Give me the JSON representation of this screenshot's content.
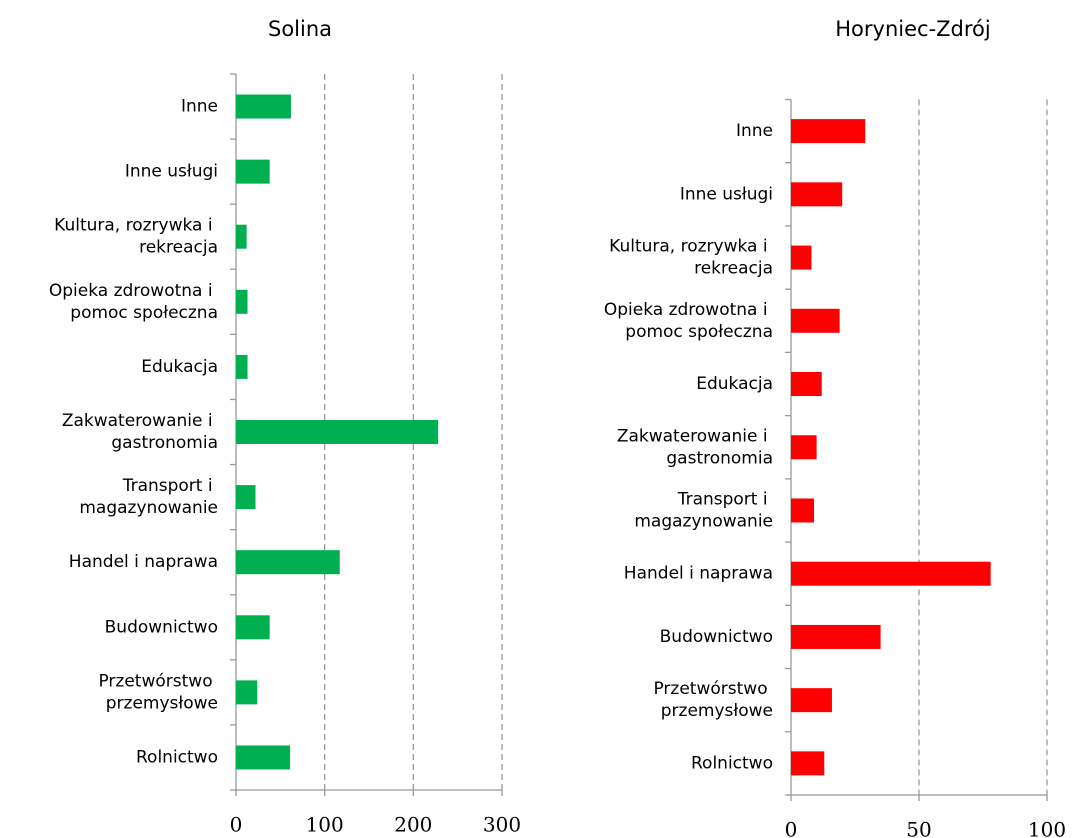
{
  "chart_data": [
    {
      "type": "barh",
      "title": "Solina",
      "color": "#00b050",
      "categories": [
        "Inne",
        "Inne usługi",
        "Kultura, rozrywka i rekreacja",
        "Opieka zdrowotna i pomoc społeczna",
        "Edukacja",
        "Zakwaterowanie i gastronomia",
        "Transport i magazynowanie",
        "Handel i naprawa",
        "Budownictwo",
        "Przetwórstwo przemysłowe",
        "Rolnictwo"
      ],
      "values": [
        62,
        38,
        12,
        13,
        13,
        228,
        22,
        117,
        38,
        24,
        61
      ],
      "xlim": [
        0,
        300
      ],
      "xticks": [
        0,
        100,
        200,
        300
      ],
      "grid": true
    },
    {
      "type": "barh",
      "title": "Horyniec-Zdrój",
      "color": "#ff0000",
      "categories": [
        "Inne",
        "Inne usługi",
        "Kultura, rozrywka i rekreacja",
        "Opieka zdrowotna i pomoc społeczna",
        "Edukacja",
        "Zakwaterowanie i gastronomia",
        "Transport i magazynowanie",
        "Handel i naprawa",
        "Budownictwo",
        "Przetwórstwo przemysłowe",
        "Rolnictwo"
      ],
      "values": [
        29,
        20,
        8,
        19,
        12,
        10,
        9,
        78,
        35,
        16,
        13
      ],
      "xlim": [
        0,
        100
      ],
      "xticks": [
        0,
        50,
        100
      ],
      "grid": true
    }
  ]
}
